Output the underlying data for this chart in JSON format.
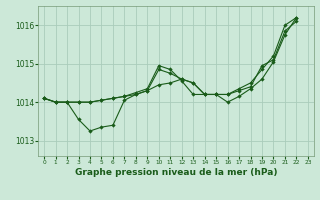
{
  "title": "Graphe pression niveau de la mer (hPa)",
  "xlim": [
    -0.5,
    23.5
  ],
  "ylim": [
    1012.6,
    1016.5
  ],
  "yticks": [
    1013,
    1014,
    1015,
    1016
  ],
  "xticks": [
    0,
    1,
    2,
    3,
    4,
    5,
    6,
    7,
    8,
    9,
    10,
    11,
    12,
    13,
    14,
    15,
    16,
    17,
    18,
    19,
    20,
    21,
    22,
    23
  ],
  "bg_color": "#cce8d8",
  "grid_color": "#aaccbb",
  "line_color": "#1a5c1a",
  "series": [
    [
      1014.1,
      1014.0,
      1014.0,
      1014.0,
      1014.0,
      1014.05,
      1014.1,
      1014.15,
      1014.2,
      1014.3,
      1014.85,
      1014.75,
      1014.6,
      1014.5,
      1014.2,
      1014.2,
      1014.2,
      1014.3,
      1014.4,
      1014.95,
      1015.1,
      1015.85,
      1016.1
    ],
    [
      1014.1,
      1014.0,
      1014.0,
      1013.55,
      1013.25,
      1013.35,
      1013.4,
      1014.05,
      1014.2,
      1014.3,
      1014.45,
      1014.5,
      1014.6,
      1014.5,
      1014.2,
      1014.2,
      1014.0,
      1014.15,
      1014.35,
      1014.6,
      1015.05,
      1015.75,
      1016.2
    ],
    [
      1014.1,
      1014.0,
      1014.0,
      1014.0,
      1014.0,
      1014.05,
      1014.1,
      1014.15,
      1014.25,
      1014.35,
      1014.95,
      1014.85,
      1014.55,
      1014.2,
      1014.2,
      1014.2,
      1014.2,
      1014.35,
      1014.5,
      1014.85,
      1015.2,
      1016.0,
      1016.2
    ]
  ],
  "xlabel_fontsize": 6.5,
  "ytick_fontsize": 5.5,
  "xtick_fontsize": 4.2
}
